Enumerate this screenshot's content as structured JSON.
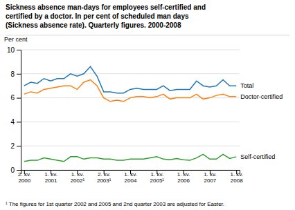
{
  "chart_data": {
    "type": "line",
    "title": "Sickness absence man-days for employees self-certified and\ncertified by a doctor. In per cent of scheduled man days\n(Sickness absence rate). Quarterly figures. 2000-2008",
    "y_label": "Per cent",
    "footnote": "¹ The figures for 1st quarter 2002 and 2005 and 2nd quarter 2003 are adjusted for Easter.",
    "categories": [
      "2. kv.\n2000",
      null,
      null,
      null,
      "1. kv.\n2001",
      null,
      null,
      null,
      "1. kv.\n2002¹",
      null,
      null,
      null,
      "2. kv.\n2003¹",
      null,
      null,
      null,
      "1. kv.\n2004",
      null,
      null,
      null,
      "1. kv.\n2005¹",
      null,
      null,
      null,
      "1. kv.\n2006",
      null,
      null,
      null,
      "1. kv.\n2007",
      null,
      null,
      null,
      "1. kv.\n2008"
    ],
    "series": [
      {
        "name": "Total",
        "values": [
          7.0,
          7.3,
          7.2,
          7.6,
          7.4,
          7.6,
          7.6,
          8.0,
          7.8,
          8.0,
          8.6,
          7.8,
          6.5,
          6.5,
          6.4,
          6.4,
          6.7,
          6.8,
          6.7,
          6.7,
          6.7,
          7.0,
          6.6,
          6.7,
          6.7,
          6.7,
          7.4,
          7.0,
          6.9,
          7.0,
          7.5,
          7.0,
          7.0
        ]
      },
      {
        "name": "Doctor-certified",
        "values": [
          6.3,
          6.5,
          6.4,
          6.7,
          6.8,
          6.9,
          7.0,
          7.0,
          6.7,
          7.3,
          7.5,
          7.0,
          6.0,
          5.7,
          5.8,
          5.7,
          6.0,
          6.1,
          6.1,
          6.0,
          6.1,
          6.3,
          5.9,
          6.0,
          6.0,
          6.0,
          6.3,
          5.9,
          6.0,
          6.2,
          6.3,
          6.1,
          6.1
        ]
      },
      {
        "name": "Self-certified",
        "values": [
          0.7,
          0.8,
          0.8,
          1.0,
          0.9,
          0.8,
          0.7,
          1.1,
          1.1,
          0.9,
          1.0,
          1.0,
          0.9,
          0.9,
          0.8,
          0.8,
          0.9,
          0.9,
          0.9,
          1.0,
          1.1,
          0.9,
          0.85,
          0.95,
          0.85,
          0.8,
          1.0,
          1.3,
          0.9,
          0.9,
          1.3,
          0.95,
          1.1
        ]
      }
    ],
    "ylim": [
      0,
      10
    ],
    "yticks": [
      0,
      2,
      4,
      6,
      8,
      10
    ],
    "grid": true
  }
}
